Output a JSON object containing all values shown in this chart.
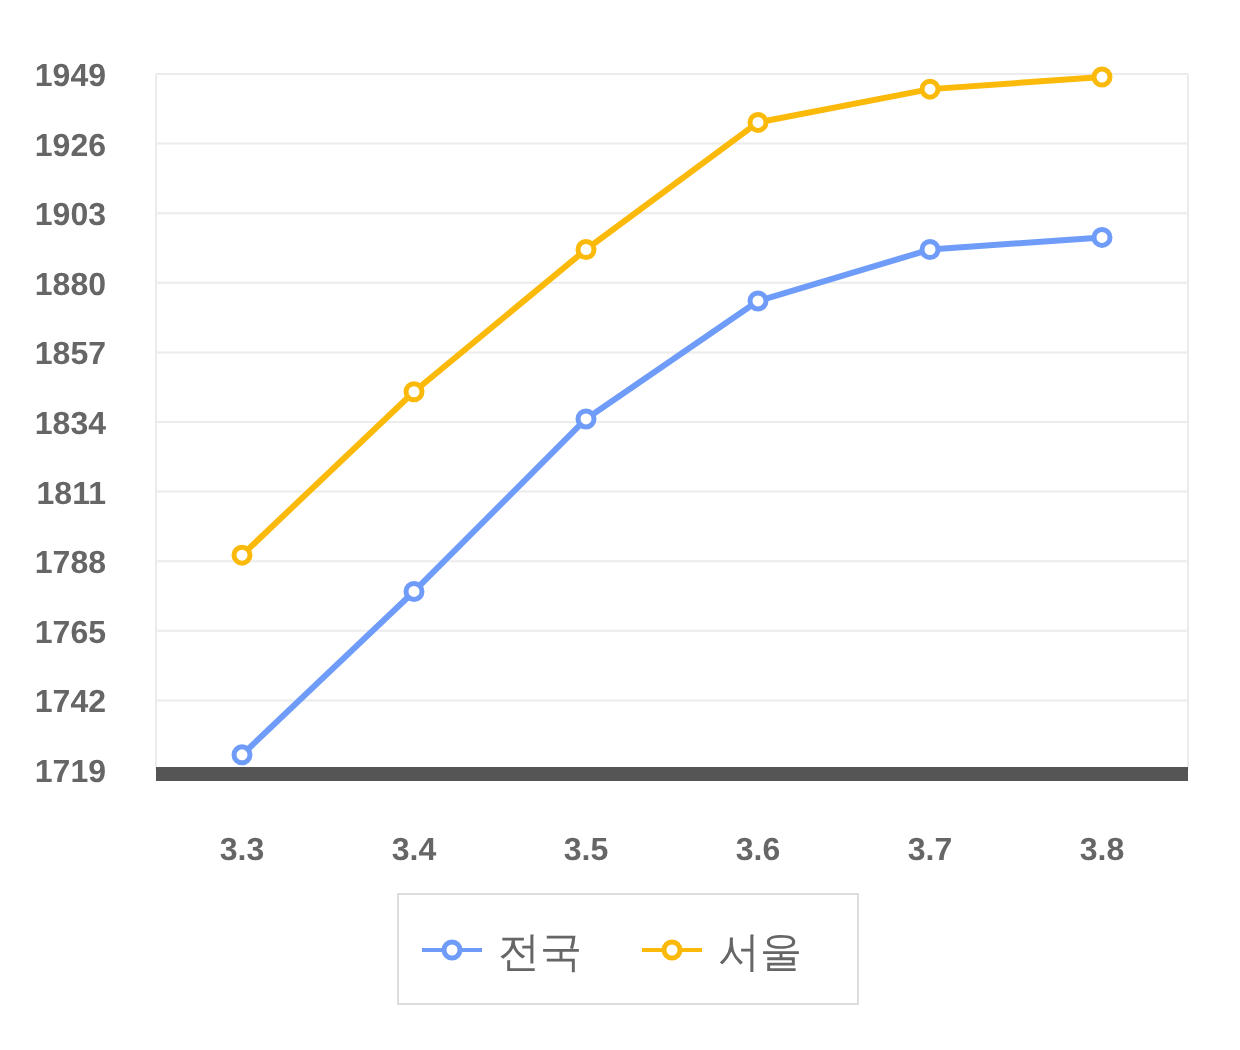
{
  "chart_data": {
    "type": "line",
    "categories": [
      "3.3",
      "3.4",
      "3.5",
      "3.6",
      "3.7",
      "3.8"
    ],
    "series": [
      {
        "name": "전국",
        "color": "#6f9cf9",
        "values": [
          1724,
          1778,
          1835,
          1874,
          1891,
          1895
        ]
      },
      {
        "name": "서울",
        "color": "#fbb909",
        "values": [
          1790,
          1844,
          1891,
          1933,
          1944,
          1948
        ]
      }
    ],
    "ylim": [
      1719,
      1949
    ],
    "yticks": [
      1719,
      1742,
      1765,
      1788,
      1811,
      1834,
      1857,
      1880,
      1903,
      1926,
      1949
    ],
    "grid": "y",
    "legend": "bottom",
    "marker": "circle",
    "line_style": "solid"
  }
}
